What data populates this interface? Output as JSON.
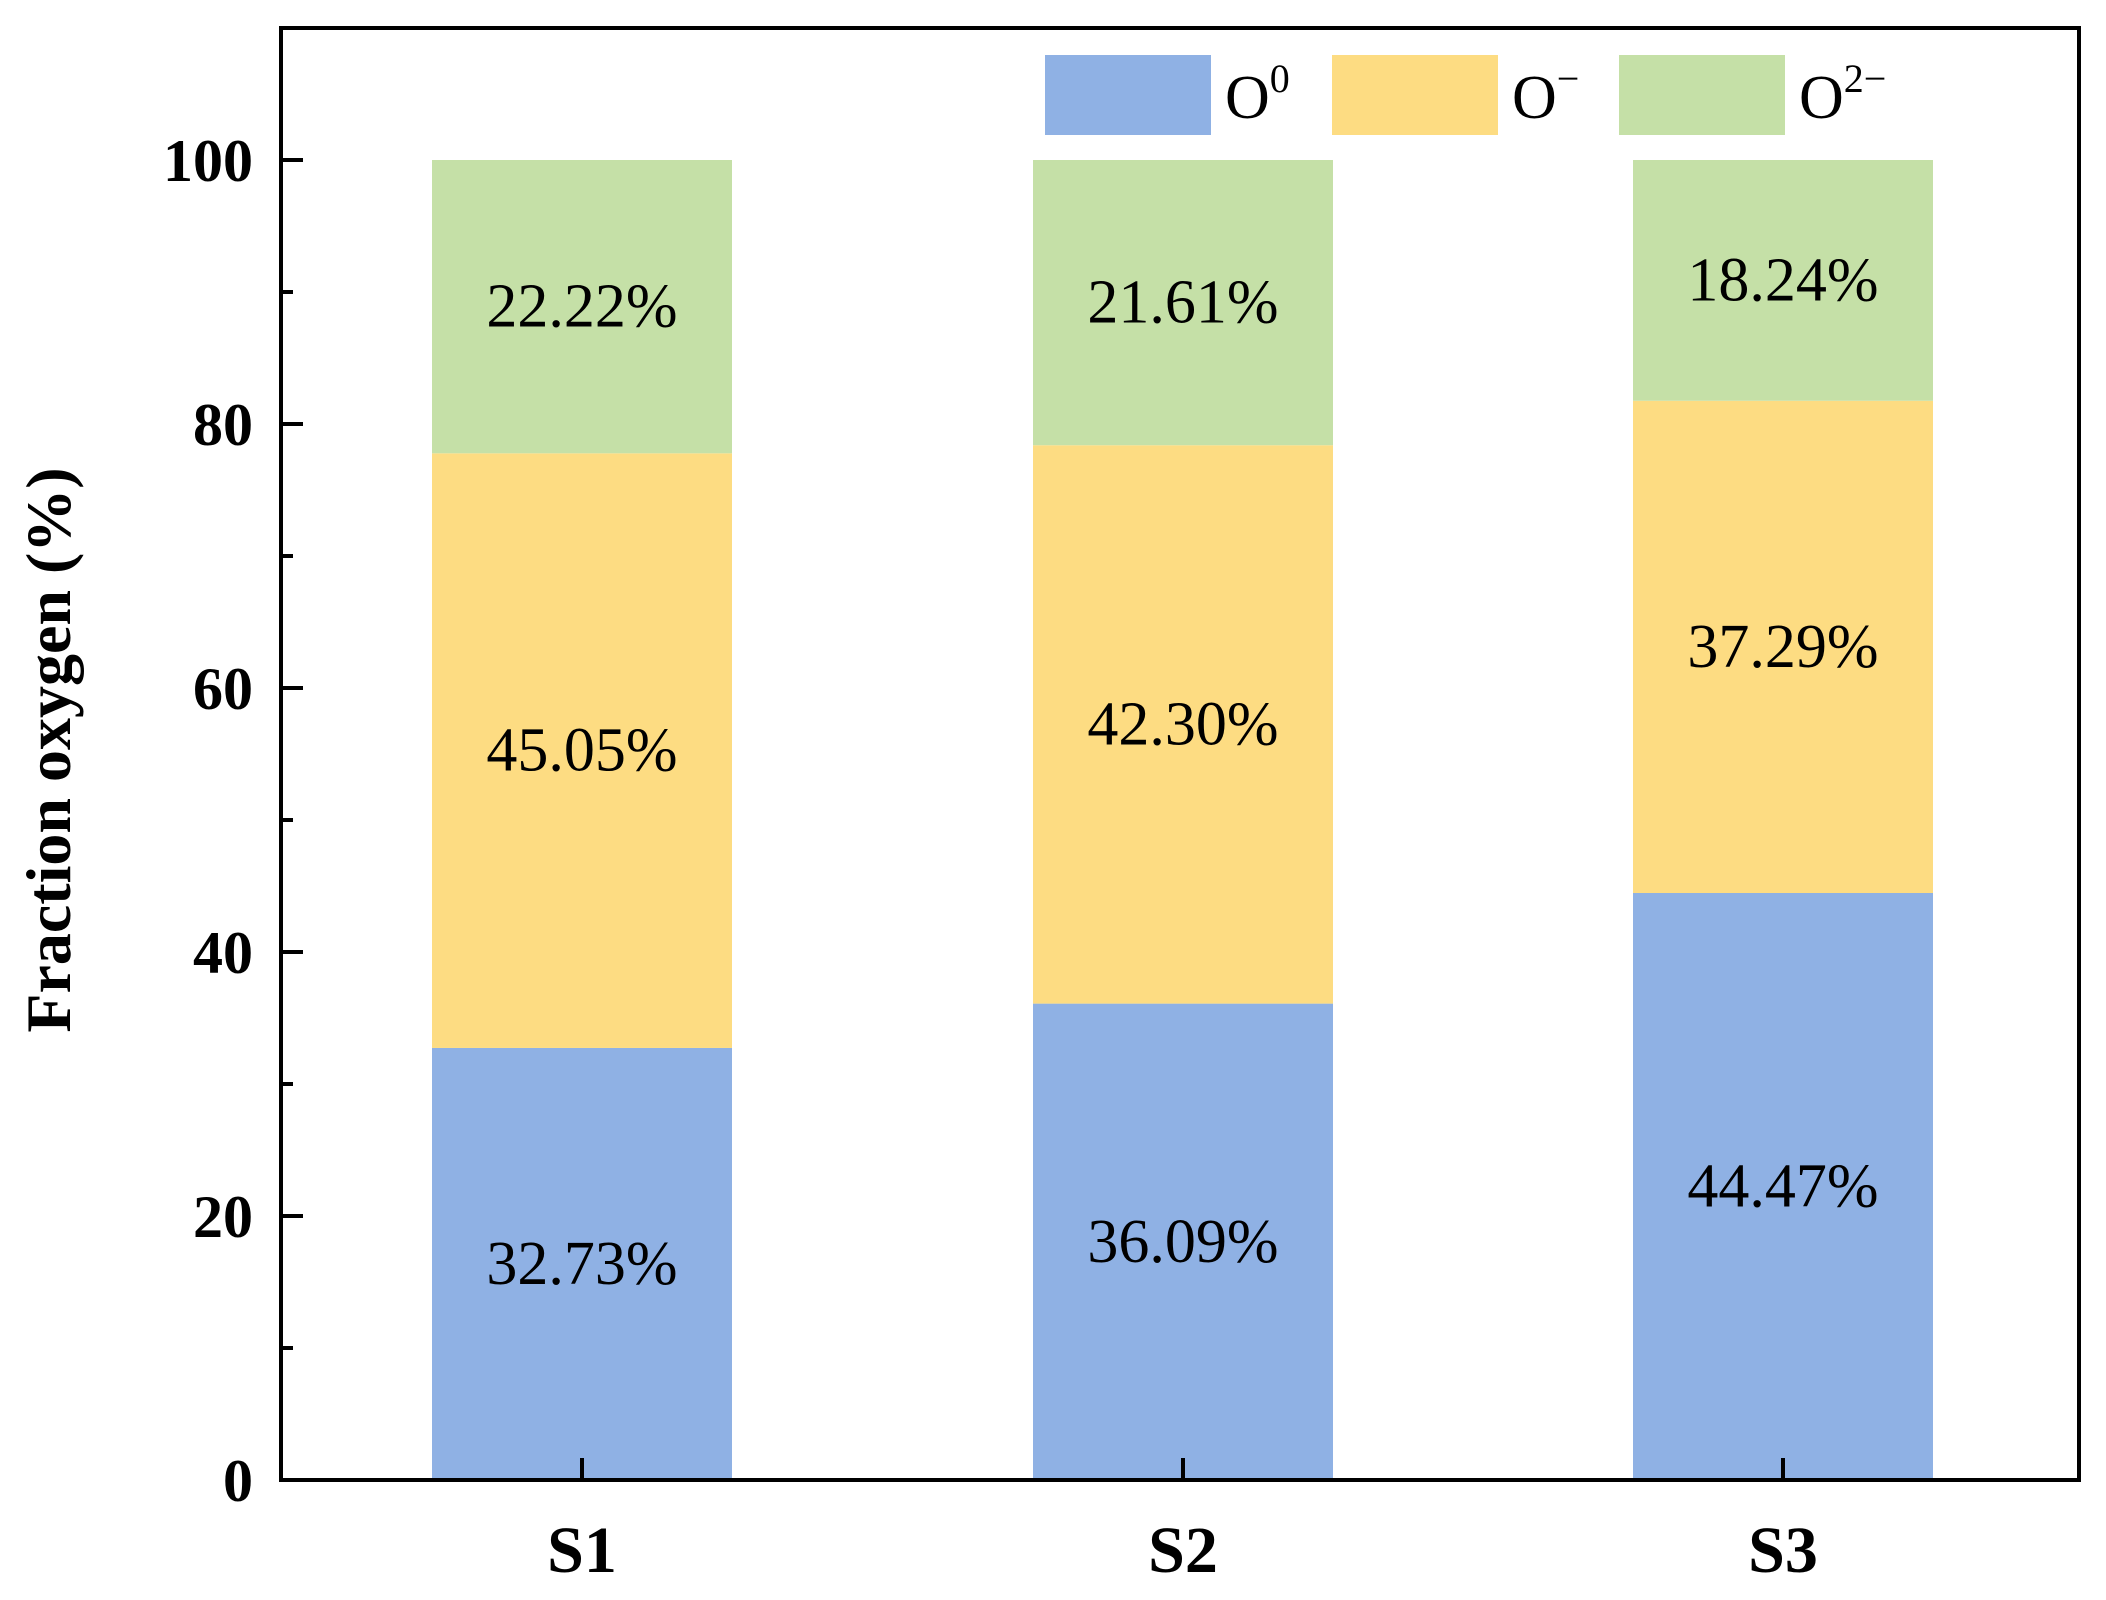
{
  "chart_data": {
    "type": "bar",
    "stacked": true,
    "title": "",
    "xlabel": "",
    "ylabel": "Fraction oxygen (%)",
    "ylim": [
      0,
      110
    ],
    "yticks": [
      0,
      20,
      40,
      60,
      80,
      100
    ],
    "grid": false,
    "legend_position": "top-right",
    "categories": [
      "S1",
      "S2",
      "S3"
    ],
    "series": [
      {
        "name": "O0",
        "label_base": "O",
        "label_sup": "0",
        "color": "#8fb1e4",
        "values": [
          32.73,
          36.09,
          44.47
        ],
        "labels": [
          "32.73%",
          "36.09%",
          "44.47%"
        ]
      },
      {
        "name": "O-",
        "label_base": "O",
        "label_sup": "−",
        "color": "#fddc82",
        "values": [
          45.05,
          42.3,
          37.29
        ],
        "labels": [
          "45.05%",
          "42.30%",
          "37.29%"
        ]
      },
      {
        "name": "O2-",
        "label_base": "O",
        "label_sup": "2−",
        "color": "#c5e0a7",
        "values": [
          22.22,
          21.61,
          18.24
        ],
        "labels": [
          "22.22%",
          "21.61%",
          "18.24%"
        ]
      }
    ]
  }
}
